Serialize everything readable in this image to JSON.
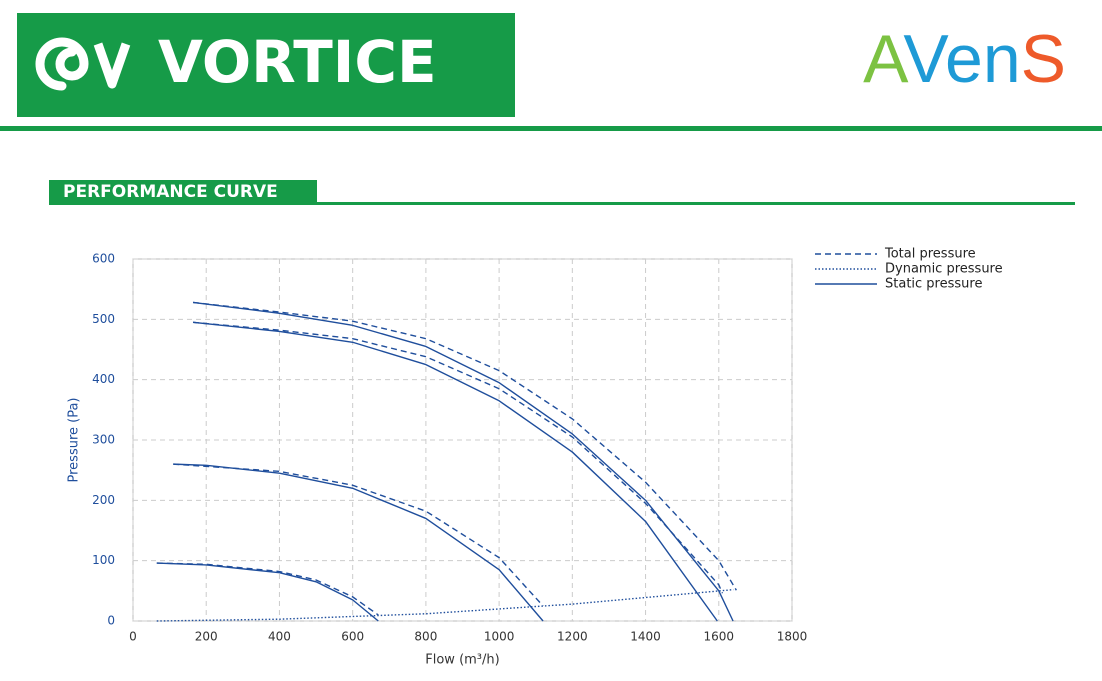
{
  "header": {
    "brand": "VORTICE",
    "partner": [
      "A",
      "V",
      "en",
      "S"
    ],
    "partner_colors": [
      "#7cc242",
      "#1e9ad6",
      "#1e9ad6",
      "#ee5a2a"
    ],
    "section_title": "PERFORMANCE CURVE"
  },
  "chart_data": {
    "type": "line",
    "x_label": "Flow (m³/h)",
    "y_label": "Pressure (Pa)",
    "xlim": [
      0,
      1800
    ],
    "xticks": [
      0,
      200,
      400,
      600,
      800,
      1000,
      1200,
      1400,
      1600,
      1800
    ],
    "ylim": [
      0,
      600
    ],
    "yticks": [
      0,
      100,
      200,
      300,
      400,
      500,
      600
    ],
    "grid": true,
    "legend_position": "right",
    "legend": [
      {
        "name": "Total pressure",
        "style": "dashed"
      },
      {
        "name": "Dynamic pressure",
        "style": "dotted"
      },
      {
        "name": "Static pressure",
        "style": "solid"
      }
    ],
    "series": [
      {
        "style": "dashed",
        "color": "#1f4e9c",
        "x": [
          164,
          400,
          600,
          800,
          1000,
          1200,
          1400,
          1600,
          1648
        ],
        "values": [
          528,
          512,
          497,
          468,
          415,
          335,
          230,
          100,
          51
        ]
      },
      {
        "style": "solid",
        "color": "#1f4e9c",
        "x": [
          164,
          400,
          600,
          800,
          1000,
          1200,
          1400,
          1600,
          1639
        ],
        "values": [
          528,
          510,
          490,
          455,
          395,
          310,
          200,
          50,
          0
        ]
      },
      {
        "style": "dashed",
        "color": "#1f4e9c",
        "x": [
          164,
          400,
          600,
          800,
          1000,
          1200,
          1400,
          1600,
          1610
        ],
        "values": [
          495,
          482,
          468,
          438,
          385,
          305,
          195,
          60,
          46
        ]
      },
      {
        "style": "solid",
        "color": "#1f4e9c",
        "x": [
          164,
          400,
          600,
          800,
          1000,
          1200,
          1400,
          1596
        ],
        "values": [
          495,
          480,
          462,
          425,
          365,
          280,
          165,
          0
        ]
      },
      {
        "style": "dashed",
        "color": "#1f4e9c",
        "x": [
          110,
          400,
          600,
          800,
          1000,
          1120
        ],
        "values": [
          260,
          248,
          225,
          182,
          105,
          25
        ]
      },
      {
        "style": "solid",
        "color": "#1f4e9c",
        "x": [
          110,
          200,
          400,
          600,
          800,
          1000,
          1120
        ],
        "values": [
          260,
          258,
          245,
          220,
          170,
          85,
          0
        ]
      },
      {
        "style": "dashed",
        "color": "#1f4e9c",
        "x": [
          65,
          200,
          400,
          500,
          600,
          670
        ],
        "values": [
          96,
          94,
          82,
          68,
          40,
          10
        ]
      },
      {
        "style": "solid",
        "color": "#1f4e9c",
        "x": [
          65,
          200,
          400,
          500,
          600,
          670
        ],
        "values": [
          96,
          93,
          80,
          65,
          35,
          0
        ]
      },
      {
        "style": "dotted",
        "color": "#1f4e9c",
        "x": [
          65,
          400,
          800,
          1200,
          1640
        ],
        "values": [
          0,
          3,
          12,
          28,
          52
        ]
      }
    ]
  }
}
